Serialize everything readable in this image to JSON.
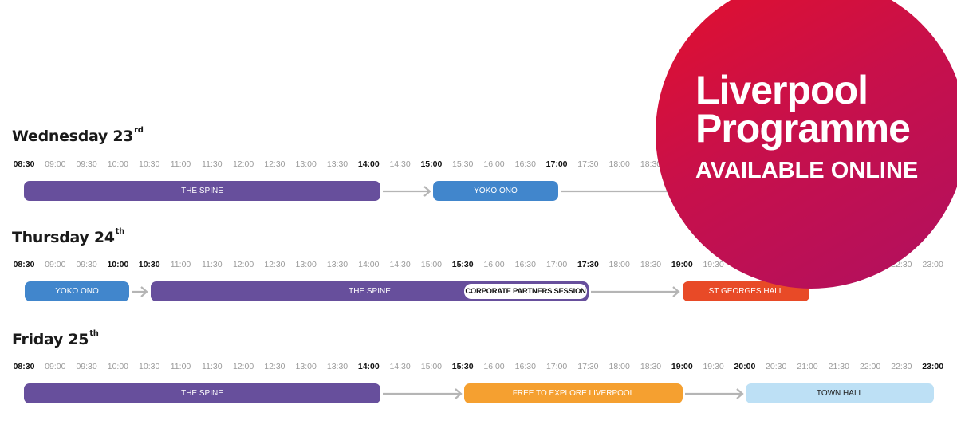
{
  "times": [
    "08:30",
    "09:00",
    "09:30",
    "10:00",
    "10:30",
    "11:00",
    "11:30",
    "12:00",
    "12:30",
    "13:00",
    "13:30",
    "14:00",
    "14:30",
    "15:00",
    "15:30",
    "16:00",
    "16:30",
    "17:00",
    "17:30",
    "18:00",
    "18:30",
    "19:00",
    "19:30",
    "20:00",
    "20:30",
    "21:00",
    "21:30",
    "22:00",
    "22:30",
    "23:00"
  ],
  "days": [
    {
      "name": "Wednesday 23",
      "suffix": "rd",
      "bold_times": [
        "08:30",
        "14:00",
        "15:00",
        "17:00"
      ],
      "events": [
        {
          "label": "THE SPINE",
          "color": "#674f9c"
        },
        {
          "label": "YOKO ONO",
          "color": "#4186cc"
        }
      ]
    },
    {
      "name": "Thursday 24",
      "suffix": "th",
      "bold_times": [
        "08:30",
        "10:00",
        "10:30",
        "15:30",
        "17:30",
        "19:00"
      ],
      "events": [
        {
          "label": "YOKO ONO",
          "color": "#4186cc"
        },
        {
          "label": "THE SPINE",
          "color": "#674f9c",
          "inner": "CORPORATE PARTNERS SESSION"
        },
        {
          "label": "ST GEORGES HALL",
          "color": "#e84a27"
        }
      ]
    },
    {
      "name": "Friday 25",
      "suffix": "th",
      "bold_times": [
        "08:30",
        "14:00",
        "15:30",
        "19:00",
        "20:00",
        "23:00"
      ],
      "events": [
        {
          "label": "THE SPINE",
          "color": "#674f9c"
        },
        {
          "label": "FREE TO EXPLORE LIVERPOOL",
          "color": "#f5a030"
        },
        {
          "label": "TOWN HALL",
          "color": "#bde0f5",
          "text_color": "#222222"
        }
      ]
    }
  ],
  "bubble": {
    "line1": "Liverpool",
    "line2": "Programme",
    "line3": "AVAILABLE ONLINE",
    "color_start": "#e3102c",
    "color_end": "#b01060"
  }
}
